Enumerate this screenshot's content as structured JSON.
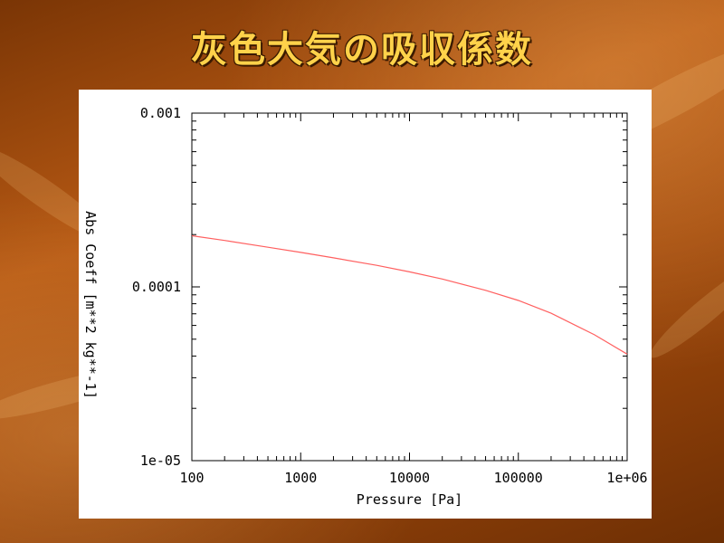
{
  "slide": {
    "title": "灰色大気の吸収係数"
  },
  "chart_data": {
    "type": "line",
    "xscale": "log",
    "yscale": "log",
    "xlim": [
      100,
      1000000
    ],
    "ylim": [
      1e-05,
      0.001
    ],
    "xlabel": "Pressure [Pa]",
    "ylabel": "Abs Coeff [m**2 kg**-1]",
    "x_tick_labels": [
      "100",
      "1000",
      "10000",
      "100000",
      "1e+06"
    ],
    "x_tick_values": [
      100,
      1000,
      10000,
      100000,
      1000000
    ],
    "y_tick_labels": [
      "1e-05",
      "0.0001",
      "0.001"
    ],
    "y_tick_values": [
      1e-05,
      0.0001,
      0.001
    ],
    "grid": false,
    "series": [
      {
        "color": "#ff6060",
        "x": [
          100,
          200,
          500,
          1000,
          2000,
          5000,
          10000,
          20000,
          50000,
          100000,
          200000,
          500000,
          1000000
        ],
        "y": [
          0.000197,
          0.000185,
          0.000169,
          0.000158,
          0.000147,
          0.000133,
          0.000122,
          0.000111,
          9.55e-05,
          8.35e-05,
          7.05e-05,
          5.3e-05,
          4.1e-05
        ]
      }
    ]
  }
}
